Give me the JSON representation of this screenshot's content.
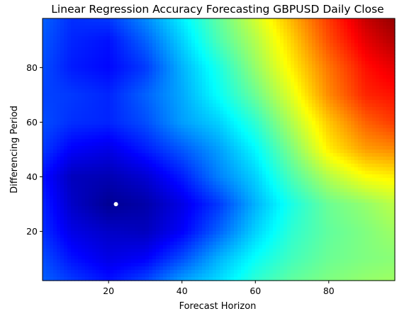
{
  "chart_data": {
    "type": "heatmap",
    "title": "Linear Regression Accuracy Forecasting GBPUSD Daily Close",
    "xlabel": "Forecast Horizon",
    "ylabel": "Differencing Period",
    "xlim": [
      2,
      98
    ],
    "ylim": [
      2,
      98
    ],
    "xticks": [
      20,
      40,
      60,
      80
    ],
    "yticks": [
      20,
      40,
      60,
      80
    ],
    "colormap": "jet",
    "grid": false,
    "marker": {
      "x": 22,
      "y": 30,
      "color": "#ffffff"
    },
    "x": [
      2,
      10,
      20,
      30,
      40,
      50,
      60,
      70,
      80,
      90,
      98
    ],
    "y": [
      2,
      10,
      20,
      30,
      40,
      50,
      60,
      70,
      80,
      90,
      98
    ],
    "values": [
      [
        0.22,
        0.18,
        0.14,
        0.19,
        0.28,
        0.34,
        0.42,
        0.47,
        0.5,
        0.52,
        0.53
      ],
      [
        0.2,
        0.14,
        0.1,
        0.12,
        0.2,
        0.3,
        0.38,
        0.44,
        0.48,
        0.5,
        0.51
      ],
      [
        0.17,
        0.1,
        0.07,
        0.06,
        0.12,
        0.22,
        0.33,
        0.42,
        0.47,
        0.5,
        0.53
      ],
      [
        0.16,
        0.07,
        0.02,
        0.04,
        0.1,
        0.18,
        0.3,
        0.4,
        0.48,
        0.52,
        0.56
      ],
      [
        0.14,
        0.06,
        0.05,
        0.08,
        0.15,
        0.25,
        0.33,
        0.45,
        0.55,
        0.62,
        0.64
      ],
      [
        0.18,
        0.12,
        0.1,
        0.15,
        0.21,
        0.28,
        0.37,
        0.5,
        0.64,
        0.72,
        0.74
      ],
      [
        0.2,
        0.17,
        0.16,
        0.2,
        0.28,
        0.33,
        0.42,
        0.55,
        0.68,
        0.78,
        0.82
      ],
      [
        0.19,
        0.18,
        0.16,
        0.22,
        0.29,
        0.38,
        0.48,
        0.6,
        0.74,
        0.84,
        0.86
      ],
      [
        0.2,
        0.15,
        0.13,
        0.18,
        0.3,
        0.4,
        0.52,
        0.64,
        0.76,
        0.86,
        0.9
      ],
      [
        0.21,
        0.16,
        0.14,
        0.22,
        0.33,
        0.45,
        0.55,
        0.67,
        0.8,
        0.9,
        0.95
      ],
      [
        0.22,
        0.17,
        0.18,
        0.26,
        0.36,
        0.47,
        0.58,
        0.7,
        0.82,
        0.93,
        0.98
      ]
    ]
  }
}
